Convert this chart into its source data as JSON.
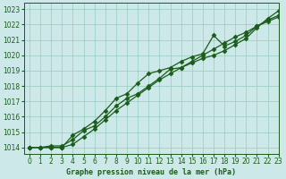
{
  "title": "Graphe pression niveau de la mer (hPa)",
  "bg_color": "#cce8e8",
  "grid_color": "#99ccbb",
  "line_color": "#1a5c1a",
  "xlim": [
    -0.5,
    23
  ],
  "ylim": [
    1013.6,
    1023.4
  ],
  "yticks": [
    1014,
    1015,
    1016,
    1017,
    1018,
    1019,
    1020,
    1021,
    1022,
    1023
  ],
  "xticks": [
    0,
    1,
    2,
    3,
    4,
    5,
    6,
    7,
    8,
    9,
    10,
    11,
    12,
    13,
    14,
    15,
    16,
    17,
    18,
    19,
    20,
    21,
    22,
    23
  ],
  "series": [
    [
      1014.0,
      1014.0,
      1014.1,
      1014.1,
      1014.5,
      1015.1,
      1015.4,
      1016.0,
      1016.7,
      1017.2,
      1017.5,
      1018.0,
      1018.5,
      1019.1,
      1019.2,
      1019.5,
      1019.8,
      1020.0,
      1020.3,
      1020.7,
      1021.1,
      1021.8,
      1022.4,
      1022.9
    ],
    [
      1014.0,
      1014.0,
      1014.0,
      1014.0,
      1014.8,
      1015.2,
      1015.7,
      1016.4,
      1017.2,
      1017.5,
      1018.2,
      1018.8,
      1019.0,
      1019.2,
      1019.6,
      1019.9,
      1020.1,
      1021.3,
      1020.6,
      1020.9,
      1021.3,
      1021.9,
      1022.2,
      1022.5
    ],
    [
      1014.0,
      1014.0,
      1014.0,
      1014.0,
      1014.2,
      1014.7,
      1015.2,
      1015.8,
      1016.4,
      1016.9,
      1017.4,
      1017.9,
      1018.4,
      1018.8,
      1019.2,
      1019.6,
      1020.0,
      1020.4,
      1020.8,
      1021.2,
      1021.5,
      1021.9,
      1022.3,
      1022.6
    ]
  ],
  "marker": "D",
  "markersize": 2.5,
  "linewidth": 0.9,
  "tick_fontsize": 5.5,
  "xlabel_fontsize": 6.0
}
